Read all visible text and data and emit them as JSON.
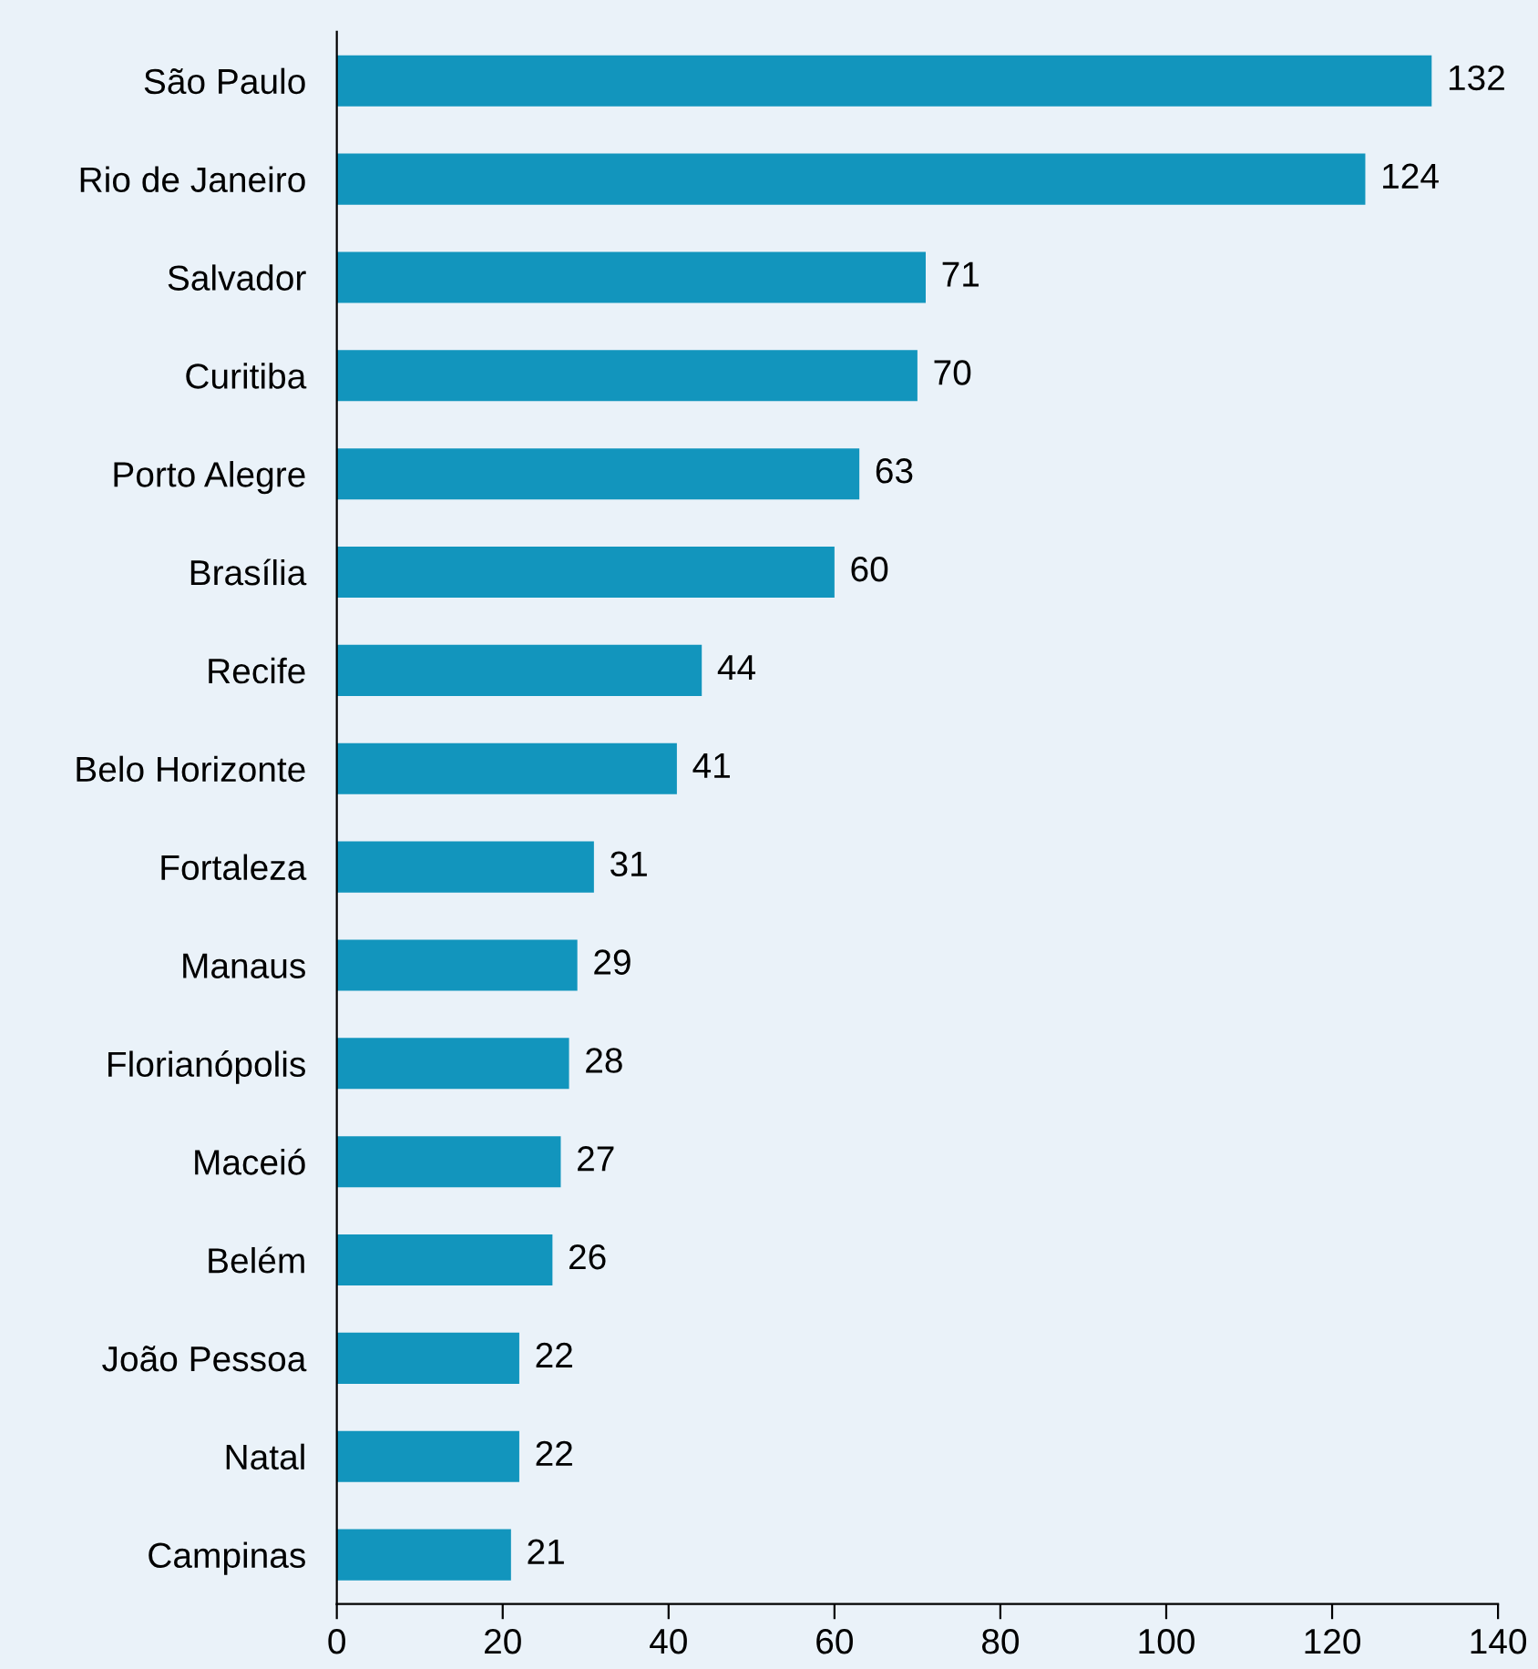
{
  "chart_data": {
    "type": "bar",
    "orientation": "horizontal",
    "categories": [
      "São Paulo",
      "Rio de Janeiro",
      "Salvador",
      "Curitiba",
      "Porto Alegre",
      "Brasília",
      "Recife",
      "Belo Horizonte",
      "Fortaleza",
      "Manaus",
      "Florianópolis",
      "Maceió",
      "Belém",
      "João Pessoa",
      "Natal",
      "Campinas"
    ],
    "values": [
      132,
      124,
      71,
      70,
      63,
      60,
      44,
      41,
      31,
      29,
      28,
      27,
      26,
      22,
      22,
      21
    ],
    "color": "#1295bd",
    "xlim": [
      0,
      140
    ],
    "xticks": [
      0,
      20,
      40,
      60,
      80,
      100,
      120,
      140
    ],
    "data_labels": true,
    "grid": false,
    "legend": false
  }
}
